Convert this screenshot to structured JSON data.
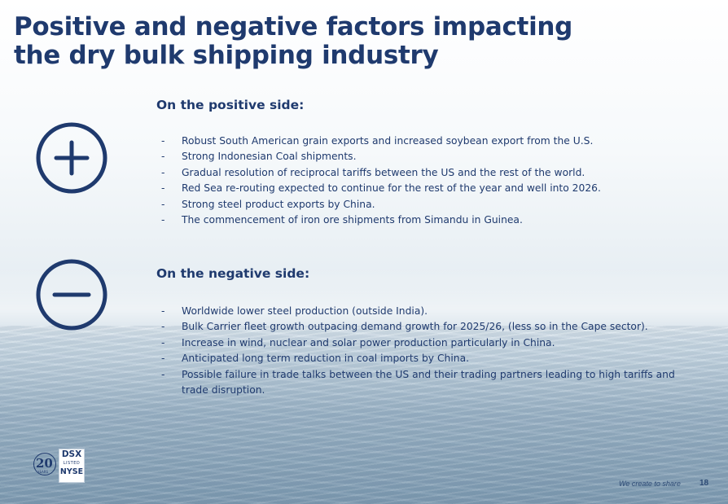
{
  "slide": {
    "title_line1": "Positive and negative factors impacting",
    "title_line2": "the dry bulk shipping industry"
  },
  "positive": {
    "heading": "On the positive side:",
    "icon": "plus-circle-icon",
    "items": [
      "Robust South American grain exports and increased soybean export from the U.S.",
      "Strong Indonesian Coal shipments.",
      "Gradual resolution of reciprocal tariffs between the US and the rest of the world.",
      "Red Sea re-routing expected to continue for the rest of the year and well into 2026.",
      "Strong steel product exports by China.",
      "The commencement of iron ore shipments from Simandu in Guinea."
    ]
  },
  "negative": {
    "heading": "On the negative side:",
    "icon": "minus-circle-icon",
    "items": [
      "Worldwide lower steel production (outside India).",
      "Bulk Carrier fleet growth outpacing demand growth for 2025/26, (less so in the Cape sector).",
      "Increase in wind, nuclear and solar power production particularly in China.",
      "Anticipated long term reduction in coal imports by China.",
      "Possible failure in trade talks between the US and their trading partners leading to high tariffs and trade disruption."
    ]
  },
  "bullet_marker": "-",
  "logo": {
    "anniversary_number": "20",
    "anniversary_label": "YEARS",
    "ticker": "DSX",
    "listed": "LISTED",
    "exchange": "NYSE"
  },
  "footer": {
    "tagline": "We create to share",
    "page_number": "18"
  },
  "colors": {
    "primary": "#1f3a6e",
    "footer_text": "#2e4b76"
  }
}
